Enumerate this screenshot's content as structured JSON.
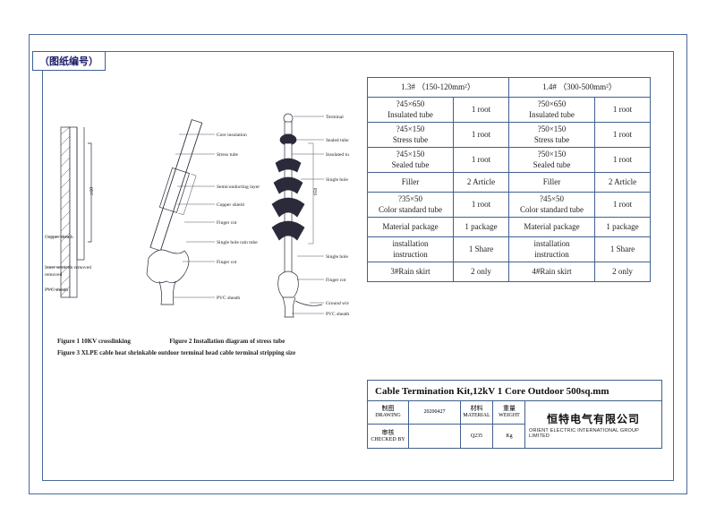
{
  "drawing_number_label": "（图纸编号）",
  "captions": {
    "c1_left": "Figure 1 10KV crosslinking",
    "c1_right": "Figure 2 Installation diagram of stress tube",
    "c2": "Figure 3 XLPE cable heat shrinkable outdoor terminal head cable terminal stripping size"
  },
  "diagram_labels": {
    "terminal": "Terminal",
    "sealed_tube": "Sealed tube",
    "insulated_tube": "Insulated tube",
    "single_hole_rain_tube": "Single hole rain tube",
    "finger_cot": "Finger cot",
    "ground_wire": "Ground wire",
    "pvc_sheath": "PVC sheath",
    "core_insulation": "Core insulation",
    "stress_tube": "Stress tube",
    "semiconducting_layer": "Semiconducting layer",
    "copper_shield": "Copper shield",
    "inner_semicon_removed": "Inner semicon removed",
    "copper_sheath": "Copper sheath"
  },
  "spec_table": {
    "header_left": "1.3# （150-120mm²）",
    "header_right": "1.4# （300-500mm²）",
    "rows": [
      {
        "l_desc": "?45×650\nInsulated tube",
        "l_qty": "1 root",
        "r_desc": "?50×650\nInsulated tube",
        "r_qty": "1 root"
      },
      {
        "l_desc": "?45×150\nStress tube",
        "l_qty": "1 root",
        "r_desc": "?50×150\nStress tube",
        "r_qty": "1 root"
      },
      {
        "l_desc": "?45×150\nSealed tube",
        "l_qty": "1 root",
        "r_desc": "?50×150\nSealed tube",
        "r_qty": "1 root"
      },
      {
        "l_desc": "Filler",
        "l_qty": "2 Article",
        "r_desc": "Filler",
        "r_qty": "2 Article"
      },
      {
        "l_desc": "?35×50\nColor standard tube",
        "l_qty": "1 root",
        "r_desc": "?45×50\nColor standard tube",
        "r_qty": "1 root"
      },
      {
        "l_desc": "Material package",
        "l_qty": "1 package",
        "r_desc": "Material package",
        "r_qty": "1 package"
      },
      {
        "l_desc": "installation\ninstruction",
        "l_qty": "1 Share",
        "r_desc": "installation\ninstruction",
        "r_qty": "1 Share"
      },
      {
        "l_desc": "3#Rain skirt",
        "l_qty": "2 only",
        "r_desc": "4#Rain skirt",
        "r_qty": "2 only"
      }
    ]
  },
  "title_block": {
    "title": "Cable Termination Kit,12kV 1 Core Outdoor  500sq.mm",
    "drawing_cn": "制图",
    "drawing_en": "DRAWING",
    "drawing_val": "20200427",
    "material_cn": "材料",
    "material_en": "MATERIAL",
    "weight_cn": "重量",
    "weight_en": "WEIGHT",
    "checked_cn": "审核",
    "checked_en": "CHECKED BY",
    "material_val": "Q235",
    "weight_unit": "Kg",
    "company_cn": "恒特电气有限公司",
    "company_en": "ORIENT ELECTRIC INTERNATIONAL GROUP LIMITED"
  },
  "colors": {
    "line": "#2a2a3a",
    "frame": "#4a6a9a"
  }
}
